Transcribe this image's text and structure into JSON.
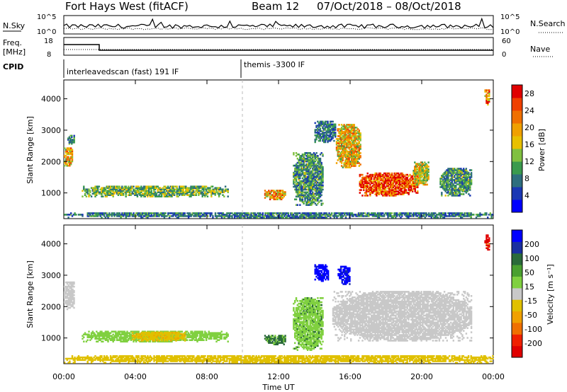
{
  "header": {
    "title": "Fort Hays West (fitACF)",
    "beam": "Beam 12",
    "dates": "07/Oct/2018 – 08/Oct/2018"
  },
  "panels": {
    "nsky": {
      "label": "N.Sky",
      "ticks": [
        "10^5",
        "10^0"
      ],
      "right_label": "N.Search",
      "right_ticks": [
        "10^5",
        "10^0"
      ]
    },
    "freq": {
      "label_1": "Freq.",
      "label_2": "[MHz]",
      "ticks": [
        "18",
        "8"
      ],
      "right_label": "Nave",
      "right_ticks": [
        "60",
        "0"
      ]
    },
    "cpid": {
      "label": "CPID",
      "program_1": "interleavedscan (fast) 191 IF",
      "program_2": "themis -3300 IF"
    }
  },
  "colors": {
    "power_scale": [
      "#0000ff",
      "#1a37b4",
      "#2e6e7e",
      "#3a9a4e",
      "#80c040",
      "#e8c000",
      "#f0a000",
      "#f07000",
      "#f04000",
      "#e00000"
    ],
    "velocity_scale": [
      "#0000ff",
      "#1a2fa0",
      "#2a6a3a",
      "#4aa030",
      "#80d040",
      "#c8c8c8",
      "#e0c000",
      "#f0a000",
      "#f07000",
      "#f02000",
      "#e00000"
    ]
  },
  "chart_data": [
    {
      "type": "heatmap",
      "name": "power",
      "ylabel": "Slant Range [km]",
      "xlabel": "Time UT",
      "x_ticks": [
        "00:00",
        "04:00",
        "08:00",
        "12:00",
        "16:00",
        "20:00",
        "00:00"
      ],
      "x_range_hours": [
        0,
        24
      ],
      "y_ticks": [
        1000,
        2000,
        3000,
        4000
      ],
      "ylim": [
        180,
        4600
      ],
      "colorbar_label": "Power [dB]",
      "colorbar_ticks": [
        4,
        8,
        12,
        16,
        20,
        24,
        28
      ],
      "colorbar_range": [
        0,
        30
      ],
      "echo_regions": [
        {
          "t0": 0.0,
          "t1": 0.5,
          "r0": 1850,
          "r1": 2450,
          "level": 18
        },
        {
          "t0": 0.2,
          "t1": 0.6,
          "r0": 2550,
          "r1": 2850,
          "level": 8
        },
        {
          "t0": 1.0,
          "t1": 9.2,
          "r0": 870,
          "r1": 1230,
          "level": 12
        },
        {
          "t0": 0.0,
          "t1": 24.0,
          "r0": 200,
          "r1": 380,
          "level": 8
        },
        {
          "t0": 11.2,
          "t1": 12.4,
          "r0": 780,
          "r1": 1100,
          "level": 20
        },
        {
          "t0": 12.8,
          "t1": 14.5,
          "r0": 600,
          "r1": 2300,
          "level": 10
        },
        {
          "t0": 14.0,
          "t1": 15.2,
          "r0": 2600,
          "r1": 3300,
          "level": 8
        },
        {
          "t0": 15.2,
          "t1": 16.6,
          "r0": 1800,
          "r1": 3200,
          "level": 18
        },
        {
          "t0": 16.5,
          "t1": 19.8,
          "r0": 900,
          "r1": 1650,
          "level": 26
        },
        {
          "t0": 19.5,
          "t1": 20.4,
          "r0": 1250,
          "r1": 2000,
          "level": 16
        },
        {
          "t0": 21.0,
          "t1": 22.8,
          "r0": 900,
          "r1": 1800,
          "level": 10
        },
        {
          "t0": 23.5,
          "t1": 23.8,
          "r0": 3800,
          "r1": 4300,
          "level": 22
        }
      ]
    },
    {
      "type": "heatmap",
      "name": "velocity",
      "ylabel": "Slant Range [km]",
      "xlabel": "Time UT",
      "x_ticks": [
        "00:00",
        "04:00",
        "08:00",
        "12:00",
        "16:00",
        "20:00",
        "00:00"
      ],
      "x_range_hours": [
        0,
        24
      ],
      "y_ticks": [
        1000,
        2000,
        3000,
        4000
      ],
      "ylim": [
        180,
        4600
      ],
      "colorbar_label": "Velocity [m s⁻¹]",
      "colorbar_ticks": [
        "200",
        "100",
        "50",
        "15",
        "-15",
        "-50",
        "-100",
        "-200"
      ],
      "echo_regions": [
        {
          "t0": 0.0,
          "t1": 0.6,
          "r0": 1900,
          "r1": 2800,
          "level": -5
        },
        {
          "t0": 1.0,
          "t1": 9.2,
          "r0": 870,
          "r1": 1230,
          "level": 30
        },
        {
          "t0": 3.8,
          "t1": 6.8,
          "r0": 900,
          "r1": 1200,
          "level": -40
        },
        {
          "t0": 0.0,
          "t1": 24.0,
          "r0": 200,
          "r1": 450,
          "level": -30
        },
        {
          "t0": 11.2,
          "t1": 12.4,
          "r0": 780,
          "r1": 1100,
          "level": 60
        },
        {
          "t0": 12.8,
          "t1": 14.5,
          "r0": 600,
          "r1": 2300,
          "level": 40
        },
        {
          "t0": 14.0,
          "t1": 14.8,
          "r0": 2800,
          "r1": 3350,
          "level": 250
        },
        {
          "t0": 15.3,
          "t1": 16.0,
          "r0": 2700,
          "r1": 3300,
          "level": 250
        },
        {
          "t0": 15.0,
          "t1": 22.8,
          "r0": 900,
          "r1": 2500,
          "level": 0
        },
        {
          "t0": 23.5,
          "t1": 23.8,
          "r0": 3800,
          "r1": 4300,
          "level": -250
        }
      ]
    }
  ]
}
